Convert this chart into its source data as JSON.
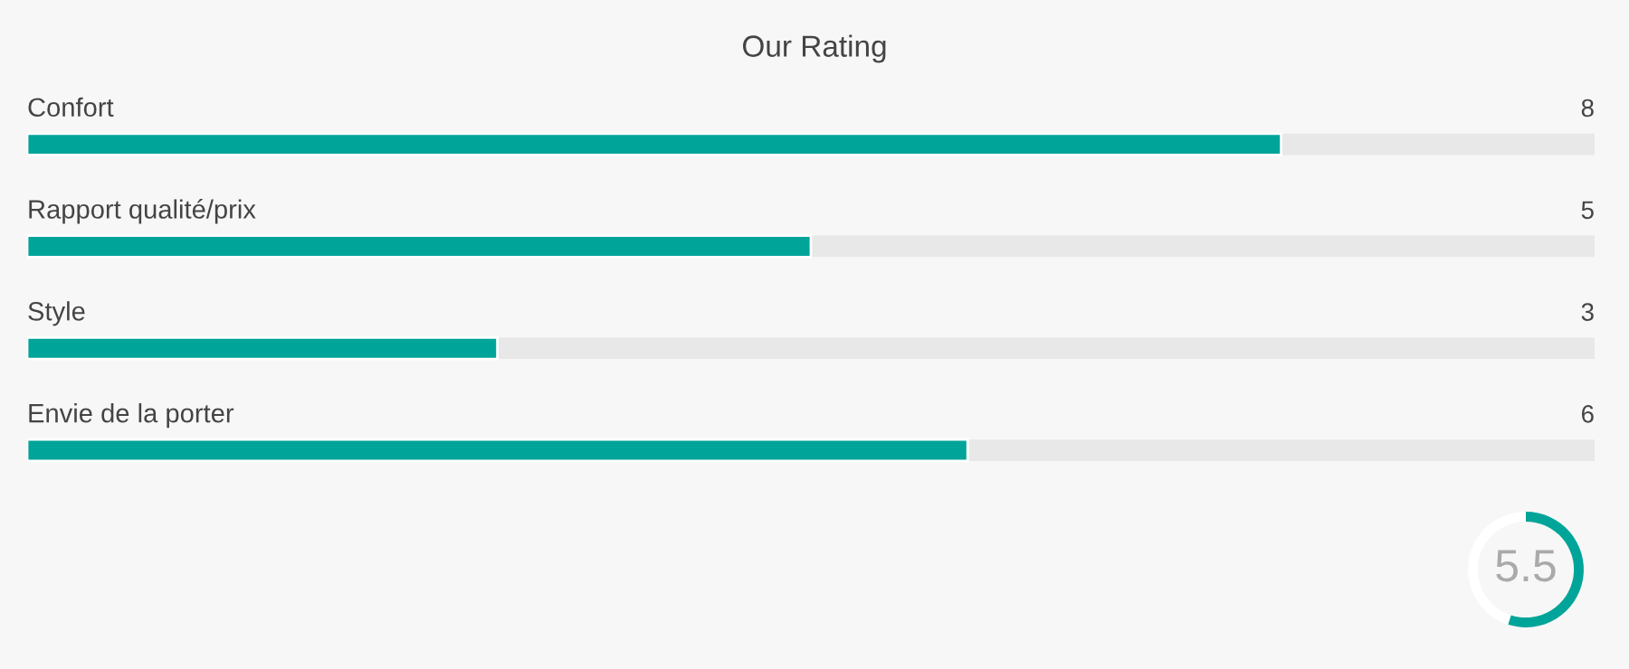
{
  "chart_data": [
    {
      "type": "bar",
      "orientation": "horizontal",
      "title": "Our Rating",
      "categories": [
        "Confort",
        "Rapport qualité/prix",
        "Style",
        "Envie de la porter"
      ],
      "values": [
        8,
        5,
        3,
        6
      ],
      "color": "#00a499",
      "xlim": [
        0,
        10
      ],
      "data_labels": true,
      "tick_labels": false,
      "legend": false
    },
    {
      "type": "donut",
      "categories": [
        null,
        null
      ],
      "values": [
        55,
        45
      ],
      "colors": [
        "#00a499",
        "#ffffff"
      ],
      "annotations": [
        "5.5"
      ],
      "legend": false
    }
  ]
}
